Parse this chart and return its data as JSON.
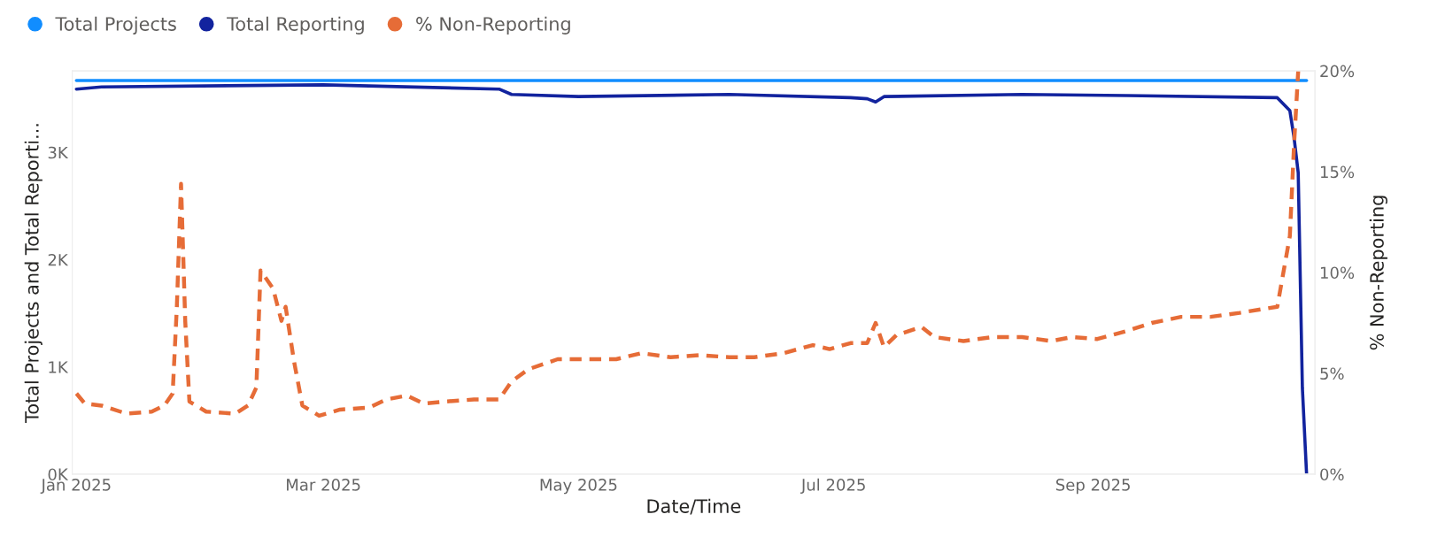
{
  "chart_data": {
    "type": "line",
    "xlabel": "Date/Time",
    "ylabel": "Total Projects and Total Reporti...",
    "y2label": "% Non-Reporting",
    "legend": "top left",
    "grid": false,
    "marker": "none",
    "xlim": [
      "2024-12-31",
      "2025-10-24"
    ],
    "xticks": [
      {
        "value": "2025-01-01",
        "label": "Jan 2025"
      },
      {
        "value": "2025-03-01",
        "label": "Mar 2025"
      },
      {
        "value": "2025-05-01",
        "label": "May 2025"
      },
      {
        "value": "2025-07-01",
        "label": "Jul 2025"
      },
      {
        "value": "2025-09-01",
        "label": "Sep 2025"
      }
    ],
    "ylim": [
      0,
      3760
    ],
    "yticks": [
      {
        "value": 0,
        "label": "0K"
      },
      {
        "value": 1000,
        "label": "1K"
      },
      {
        "value": 2000,
        "label": "2K"
      },
      {
        "value": 3000,
        "label": "3K"
      }
    ],
    "y2lim": [
      0,
      20
    ],
    "y2ticks": [
      {
        "value": 0,
        "label": "0%"
      },
      {
        "value": 5,
        "label": "5%"
      },
      {
        "value": 10,
        "label": "10%"
      },
      {
        "value": 15,
        "label": "15%"
      },
      {
        "value": 20,
        "label": "20%"
      }
    ],
    "series": [
      {
        "name": "Total Projects",
        "color": "#118dff",
        "line_style": "solid",
        "x": [
          "2025-01-01",
          "2025-10-22"
        ],
        "values": [
          3670,
          3670
        ]
      },
      {
        "name": "Total Reporting",
        "color": "#12239e",
        "line_style": "solid",
        "x": [
          "2025-01-01",
          "2025-01-07",
          "2025-03-01",
          "2025-04-12",
          "2025-04-15",
          "2025-05-01",
          "2025-06-06",
          "2025-07-05",
          "2025-07-09",
          "2025-07-11",
          "2025-07-13",
          "2025-08-15",
          "2025-09-09",
          "2025-10-15",
          "2025-10-18",
          "2025-10-19",
          "2025-10-20",
          "2025-10-21",
          "2025-10-22"
        ],
        "values": [
          3590,
          3610,
          3630,
          3590,
          3540,
          3520,
          3540,
          3510,
          3500,
          3470,
          3520,
          3540,
          3530,
          3510,
          3390,
          3140,
          2810,
          800,
          0
        ]
      },
      {
        "name": "% Non-Reporting",
        "color": "#e66c37",
        "line_style": "dashed",
        "axis": "y2",
        "x": [
          "2025-01-01",
          "2025-01-03",
          "2025-01-07",
          "2025-01-13",
          "2025-01-19",
          "2025-01-22",
          "2025-01-24",
          "2025-01-25",
          "2025-01-26",
          "2025-01-27",
          "2025-01-28",
          "2025-02-01",
          "2025-02-08",
          "2025-02-11",
          "2025-02-13",
          "2025-02-14",
          "2025-02-17",
          "2025-02-19",
          "2025-02-20",
          "2025-02-22",
          "2025-02-24",
          "2025-02-28",
          "2025-03-05",
          "2025-03-12",
          "2025-03-16",
          "2025-03-21",
          "2025-03-25",
          "2025-03-30",
          "2025-04-06",
          "2025-04-12",
          "2025-04-15",
          "2025-04-19",
          "2025-04-26",
          "2025-05-03",
          "2025-05-10",
          "2025-05-16",
          "2025-05-23",
          "2025-05-30",
          "2025-06-06",
          "2025-06-12",
          "2025-06-19",
          "2025-06-26",
          "2025-06-30",
          "2025-07-05",
          "2025-07-09",
          "2025-07-11",
          "2025-07-13",
          "2025-07-16",
          "2025-07-22",
          "2025-07-25",
          "2025-08-01",
          "2025-08-08",
          "2025-08-15",
          "2025-08-22",
          "2025-08-27",
          "2025-09-02",
          "2025-09-09",
          "2025-09-15",
          "2025-09-22",
          "2025-09-29",
          "2025-10-06",
          "2025-10-15",
          "2025-10-18",
          "2025-10-19",
          "2025-10-20"
        ],
        "values": [
          4.0,
          3.5,
          3.4,
          3.0,
          3.1,
          3.4,
          4.0,
          8.3,
          14.4,
          7.6,
          3.6,
          3.1,
          3.0,
          3.4,
          4.3,
          10.1,
          9.2,
          7.6,
          8.3,
          5.6,
          3.4,
          2.9,
          3.2,
          3.3,
          3.7,
          3.9,
          3.5,
          3.6,
          3.7,
          3.7,
          4.6,
          5.2,
          5.7,
          5.7,
          5.7,
          6.0,
          5.8,
          5.9,
          5.8,
          5.8,
          6.0,
          6.4,
          6.2,
          6.5,
          6.5,
          7.5,
          6.3,
          6.9,
          7.3,
          6.8,
          6.6,
          6.8,
          6.8,
          6.6,
          6.8,
          6.7,
          7.1,
          7.5,
          7.8,
          7.8,
          8.0,
          8.3,
          11.8,
          16.3,
          20.0
        ]
      }
    ]
  }
}
